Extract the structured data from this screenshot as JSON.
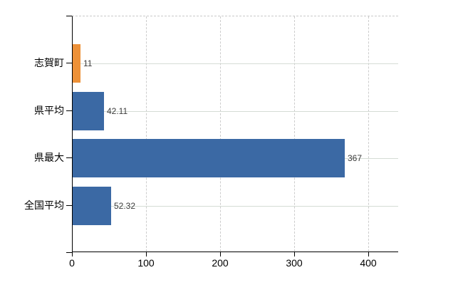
{
  "chart_data": {
    "type": "bar",
    "orientation": "horizontal",
    "title": "",
    "xlabel": "",
    "ylabel": "",
    "categories": [
      "志賀町",
      "県平均",
      "県最大",
      "全国平均"
    ],
    "values": [
      11,
      42.11,
      367,
      52.32
    ],
    "value_labels": [
      "11",
      "42.11",
      "367",
      "52.32"
    ],
    "bar_colors": [
      "#ED9138",
      "#3B69A4",
      "#3B69A4",
      "#3B69A4"
    ],
    "highlight_color": "#ED9138",
    "series_color": "#3B69A4",
    "xlim": [
      0,
      440
    ],
    "x_ticks": [
      0,
      100,
      200,
      300,
      400
    ],
    "x_tick_labels": [
      "0",
      "100",
      "200",
      "300",
      "400"
    ],
    "grid": {
      "vertical": "dashed",
      "horizontal": "solid",
      "vertical_color": "#cccccc",
      "horizontal_color": "#d5dcd5",
      "top_border": "dashed"
    },
    "legend": null,
    "background": "#ffffff"
  }
}
